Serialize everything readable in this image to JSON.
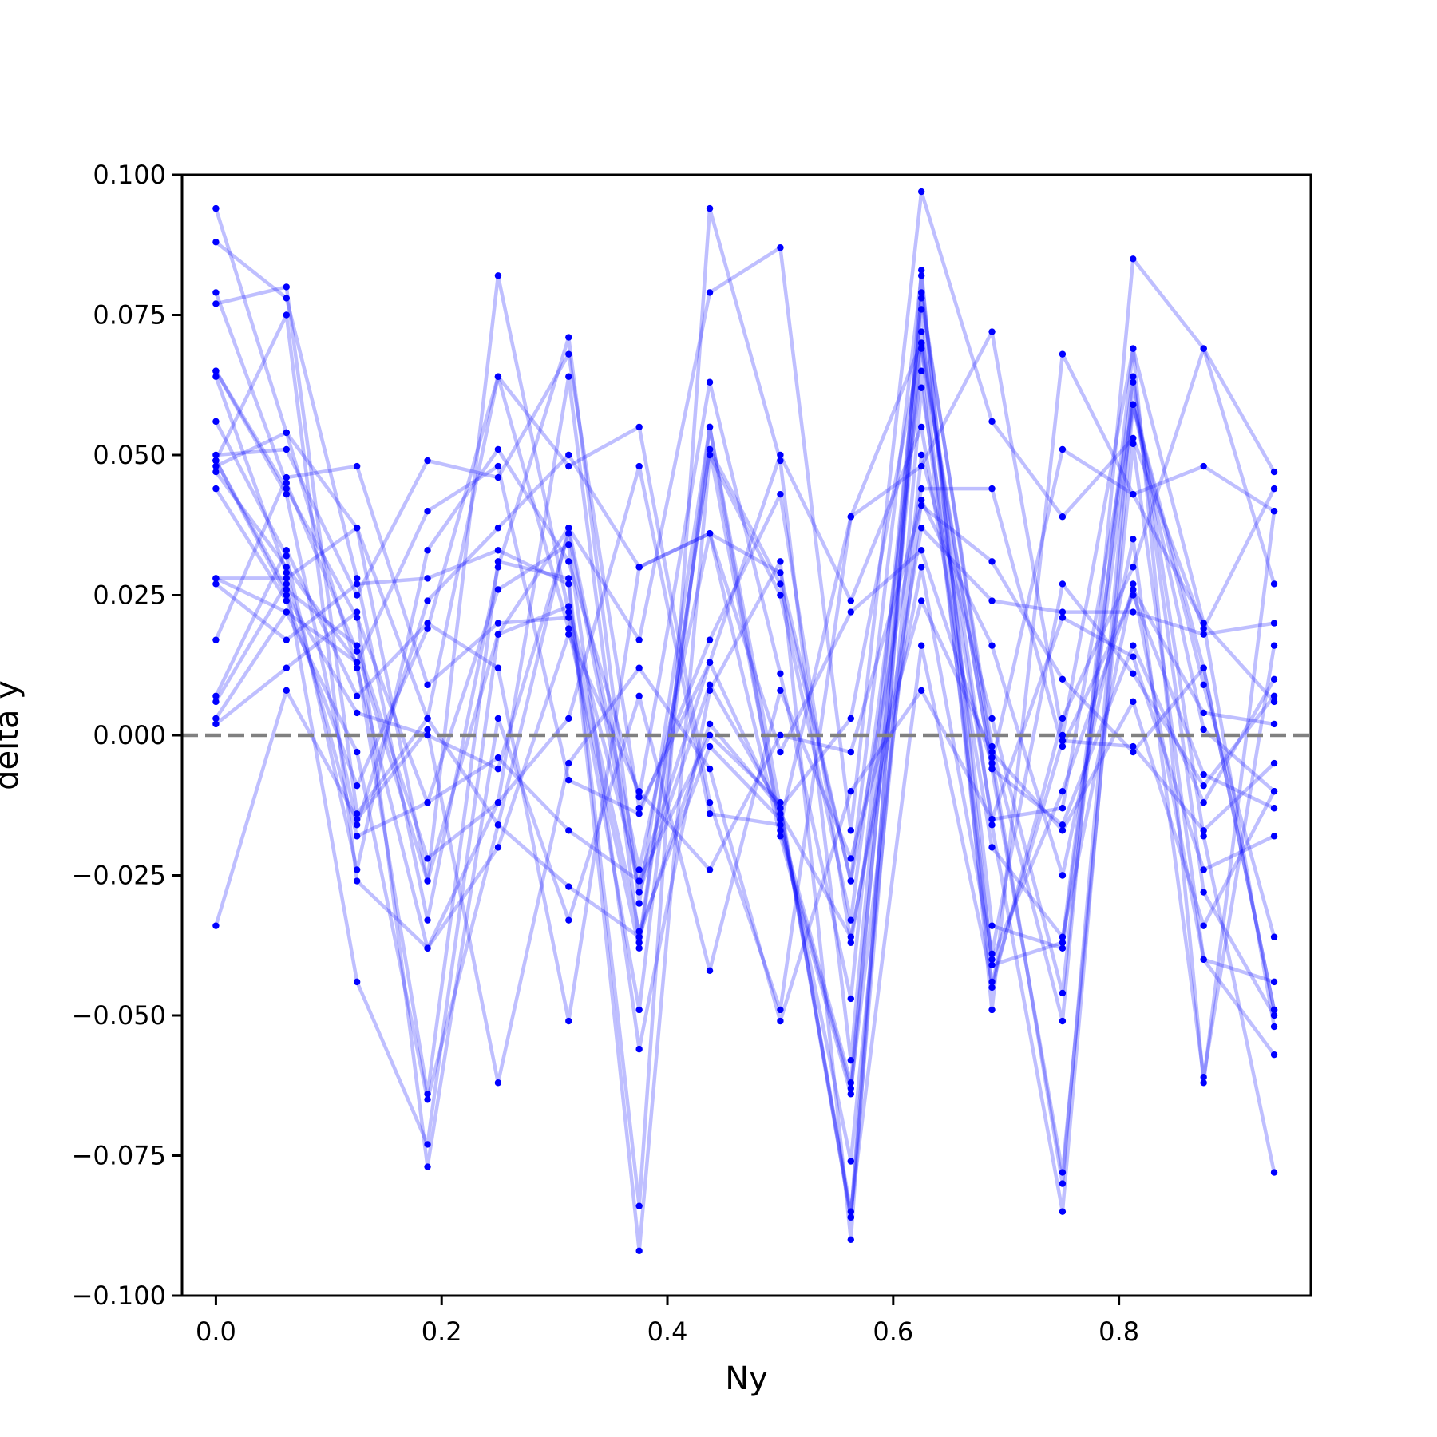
{
  "chart_data": {
    "type": "line",
    "title": "",
    "xlabel": "Ny",
    "ylabel": "delta y",
    "xlim": [
      -0.03,
      0.97
    ],
    "ylim": [
      -0.1,
      0.1
    ],
    "x_ticks": [
      "0.0",
      "0.2",
      "0.4",
      "0.6",
      "0.8"
    ],
    "x_tick_values": [
      0.0,
      0.2,
      0.4,
      0.6,
      0.8
    ],
    "y_ticks": [
      "−0.100",
      "−0.075",
      "−0.050",
      "−0.025",
      "0.000",
      "0.025",
      "0.050",
      "0.075",
      "0.100"
    ],
    "y_tick_values": [
      -0.1,
      -0.075,
      -0.05,
      -0.025,
      0.0,
      0.025,
      0.05,
      0.075,
      0.1
    ],
    "reference_line": {
      "y": 0.0,
      "style": "dashed",
      "color": "#808080"
    },
    "grid": false,
    "line_color": "#0000ff",
    "line_opacity": 0.25,
    "marker_color": "#0000ff",
    "x": [
      0.0,
      0.0625,
      0.125,
      0.1875,
      0.25,
      0.3125,
      0.375,
      0.4375,
      0.5,
      0.5625,
      0.625,
      0.6875,
      0.75,
      0.8125,
      0.875,
      0.9375
    ],
    "series": [
      {
        "values": [
          0.094,
          0.054,
          0.012,
          -0.038,
          -0.012,
          0.064,
          -0.037,
          0.051,
          -0.016,
          -0.062,
          0.069,
          -0.006,
          -0.078,
          0.052,
          -0.04,
          -0.044
        ]
      },
      {
        "values": [
          0.088,
          0.078,
          0.028,
          -0.033,
          0.03,
          0.071,
          -0.03,
          0.055,
          -0.013,
          -0.086,
          0.079,
          -0.004,
          -0.08,
          0.063,
          -0.028,
          -0.05
        ]
      },
      {
        "values": [
          0.079,
          0.045,
          0.015,
          -0.026,
          0.018,
          0.037,
          -0.024,
          0.036,
          -0.018,
          -0.064,
          0.072,
          -0.016,
          -0.085,
          0.059,
          0.012,
          -0.049
        ]
      },
      {
        "values": [
          0.077,
          0.08,
          -0.014,
          0.003,
          0.064,
          0.048,
          0.055,
          -0.012,
          -0.049,
          0.039,
          0.048,
          0.072,
          0.0,
          0.069,
          -0.062,
          0.04
        ]
      },
      {
        "values": [
          0.065,
          0.043,
          -0.016,
          0.024,
          0.037,
          0.05,
          0.03,
          0.036,
          0.029,
          -0.026,
          0.082,
          -0.041,
          -0.037,
          0.064,
          -0.018,
          -0.078
        ]
      },
      {
        "values": [
          0.064,
          0.029,
          -0.018,
          -0.012,
          0.026,
          0.034,
          -0.056,
          0.008,
          0.031,
          -0.09,
          0.083,
          -0.049,
          0.068,
          0.043,
          0.048,
          0.04
        ]
      },
      {
        "values": [
          0.056,
          0.032,
          -0.024,
          0.033,
          0.051,
          0.031,
          -0.011,
          0.063,
          0.011,
          -0.047,
          0.076,
          -0.034,
          -0.038,
          0.059,
          0.009,
          -0.036
        ]
      },
      {
        "values": [
          0.05,
          0.051,
          0.025,
          0.049,
          0.046,
          0.068,
          -0.013,
          0.013,
          0.05,
          0.024,
          0.055,
          -0.02,
          -0.036,
          0.027,
          -0.04,
          -0.057
        ]
      },
      {
        "values": [
          0.049,
          0.026,
          0.016,
          -0.022,
          -0.012,
          0.003,
          0.048,
          -0.014,
          -0.016,
          0.039,
          0.07,
          -0.045,
          0.003,
          0.03,
          0.069,
          0.047
        ]
      },
      {
        "values": [
          0.048,
          0.054,
          0.037,
          0.003,
          -0.016,
          0.037,
          0.017,
          0.079,
          0.087,
          -0.017,
          0.097,
          0.056,
          0.039,
          0.053,
          0.019,
          0.044
        ]
      },
      {
        "values": [
          0.047,
          0.03,
          0.013,
          -0.064,
          0.031,
          0.028,
          -0.084,
          0.094,
          0.049,
          -0.058,
          0.078,
          -0.002,
          -0.051,
          0.085,
          0.069,
          0.027
        ]
      },
      {
        "values": [
          0.044,
          0.024,
          -0.009,
          0.019,
          0.064,
          0.019,
          -0.038,
          0.051,
          0.027,
          -0.026,
          0.044,
          0.044,
          -0.002,
          0.025,
          -0.007,
          -0.013
        ]
      },
      {
        "values": [
          0.028,
          0.028,
          0.037,
          -0.026,
          0.082,
          0.022,
          -0.035,
          -0.002,
          -0.015,
          -0.076,
          0.05,
          0.003,
          -0.046,
          0.069,
          0.02,
          -0.052
        ]
      },
      {
        "values": [
          0.027,
          0.017,
          0.027,
          0.028,
          0.033,
          0.027,
          -0.092,
          0.05,
          0.025,
          -0.033,
          0.065,
          -0.04,
          -0.01,
          0.026,
          0.004,
          0.002
        ]
      },
      {
        "values": [
          0.017,
          0.046,
          0.048,
          0.009,
          0.02,
          0.021,
          -0.049,
          0.055,
          -0.017,
          -0.063,
          0.042,
          0.016,
          -0.025,
          0.035,
          -0.061,
          0.016
        ]
      },
      {
        "values": [
          0.007,
          0.033,
          0.007,
          0.02,
          0.012,
          -0.051,
          0.03,
          0.036,
          -0.003,
          0.022,
          0.033,
          -0.005,
          0.051,
          0.043,
          0.02,
          0.006
        ]
      },
      {
        "values": [
          0.006,
          0.027,
          -0.044,
          -0.073,
          0.018,
          0.023,
          -0.026,
          0.013,
          -0.014,
          -0.036,
          0.03,
          -0.039,
          0.027,
          0.011,
          -0.009,
          0.007
        ]
      },
      {
        "values": [
          0.003,
          0.022,
          -0.003,
          -0.065,
          -0.016,
          -0.027,
          -0.036,
          0.002,
          -0.013,
          -0.085,
          0.016,
          -0.044,
          -0.001,
          -0.002,
          -0.017,
          -0.005
        ]
      },
      {
        "values": [
          0.002,
          0.012,
          0.022,
          -0.077,
          0.003,
          -0.033,
          0.007,
          -0.042,
          0.008,
          -0.022,
          0.024,
          -0.003,
          -0.017,
          0.006,
          -0.034,
          -0.01
        ]
      },
      {
        "values": [
          -0.034,
          0.008,
          -0.015,
          0.001,
          -0.062,
          -0.005,
          0.012,
          -0.006,
          -0.051,
          -0.01,
          0.008,
          -0.015,
          0.021,
          0.014,
          -0.024,
          -0.018
        ]
      },
      {
        "values": [
          0.049,
          0.075,
          -0.026,
          -0.038,
          -0.02,
          0.018,
          -0.01,
          -0.024,
          0.0,
          -0.003,
          0.041,
          0.031,
          0.01,
          -0.003,
          0.012,
          -0.049
        ]
      },
      {
        "values": [
          0.028,
          0.022,
          0.013,
          0.04,
          0.048,
          -0.008,
          -0.014,
          0.017,
          0.043,
          -0.037,
          0.037,
          0.024,
          0.022,
          0.022,
          0.018,
          0.02
        ]
      },
      {
        "values": [
          0.065,
          0.044,
          0.021,
          -0.012,
          -0.004,
          -0.017,
          -0.026,
          0.0,
          -0.012,
          -0.086,
          0.062,
          -0.015,
          -0.013,
          0.059,
          0.001,
          -0.01
        ]
      },
      {
        "values": [
          0.049,
          0.025,
          0.004,
          0.0,
          -0.006,
          0.036,
          -0.028,
          0.009,
          -0.013,
          0.003,
          0.07,
          -0.006,
          -0.016,
          0.016,
          -0.012,
          0.01
        ]
      }
    ]
  }
}
